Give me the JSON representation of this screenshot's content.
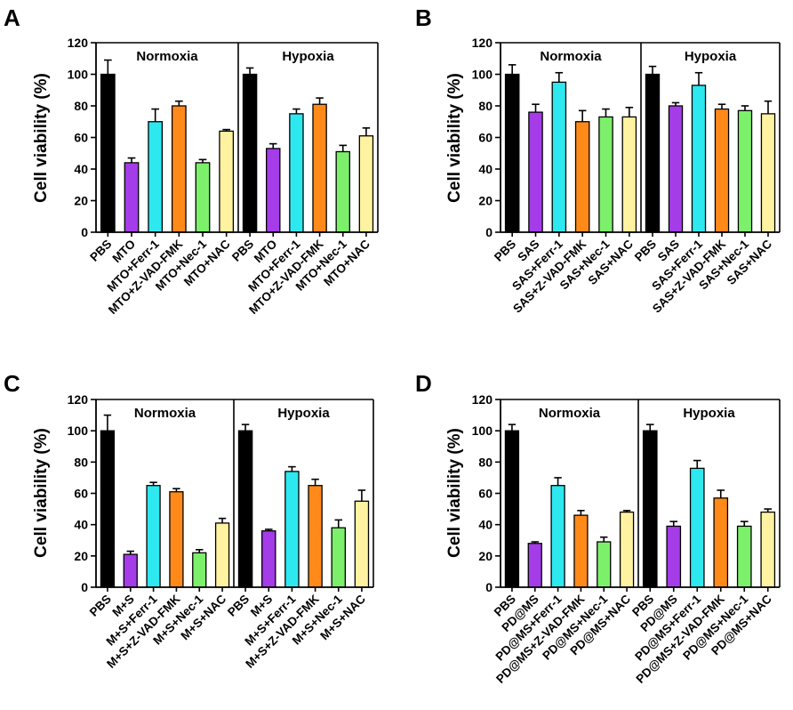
{
  "colors": [
    "#000000",
    "#a43ce8",
    "#2ee8f0",
    "#ff8a1a",
    "#7cf06a",
    "#fff2a0"
  ],
  "chart_data": [
    {
      "panel": "A",
      "type": "bar",
      "ylabel": "Cell viability (%)",
      "ylim": [
        0,
        120
      ],
      "yticks": [
        "0",
        "20",
        "40",
        "60",
        "80",
        "100",
        "120"
      ],
      "groups": [
        {
          "label": "Normoxia",
          "categories": [
            "PBS",
            "MTO",
            "MTO+Ferr-1",
            "MTO+Z-VAD-FMK",
            "MTO+Nec-1",
            "MTO+NAC"
          ],
          "values": [
            100,
            44,
            70,
            80,
            44,
            64
          ],
          "errors": [
            9,
            3,
            8,
            3,
            2,
            1
          ]
        },
        {
          "label": "Hypoxia",
          "categories": [
            "PBS",
            "MTO",
            "MTO+Ferr-1",
            "MTO+Z-VAD-FMK",
            "MTO+Nec-1",
            "MTO+NAC"
          ],
          "values": [
            100,
            53,
            75,
            81,
            51,
            61
          ],
          "errors": [
            4,
            3,
            3,
            4,
            4,
            5
          ]
        }
      ]
    },
    {
      "panel": "B",
      "type": "bar",
      "ylabel": "Cell viability (%)",
      "ylim": [
        0,
        120
      ],
      "yticks": [
        "0",
        "20",
        "40",
        "60",
        "80",
        "100",
        "120"
      ],
      "groups": [
        {
          "label": "Normoxia",
          "categories": [
            "PBS",
            "SAS",
            "SAS+Ferr-1",
            "SAS+Z-VAD-FMK",
            "SAS+Nec-1",
            "SAS+NAC"
          ],
          "values": [
            100,
            76,
            95,
            70,
            73,
            73
          ],
          "errors": [
            6,
            5,
            6,
            7,
            5,
            6
          ]
        },
        {
          "label": "Hypoxia",
          "categories": [
            "PBS",
            "SAS",
            "SAS+Ferr-1",
            "SAS+Z-VAD-FMK",
            "SAS+Nec-1",
            "SAS+NAC"
          ],
          "values": [
            100,
            80,
            93,
            78,
            77,
            75
          ],
          "errors": [
            5,
            2,
            8,
            3,
            3,
            8
          ]
        }
      ]
    },
    {
      "panel": "C",
      "type": "bar",
      "ylabel": "Cell viability (%)",
      "ylim": [
        0,
        120
      ],
      "yticks": [
        "0",
        "20",
        "40",
        "60",
        "80",
        "100",
        "120"
      ],
      "groups": [
        {
          "label": "Normoxia",
          "categories": [
            "PBS",
            "M+S",
            "M+S+Ferr-1",
            "M+S+Z-VAD-FMK",
            "M+S+Nec-1",
            "M+S+NAC"
          ],
          "values": [
            100,
            21,
            65,
            61,
            22,
            41
          ],
          "errors": [
            10,
            2,
            2,
            2,
            2,
            3
          ]
        },
        {
          "label": "Hypoxia",
          "categories": [
            "PBS",
            "M+S",
            "M+S+Ferr-1",
            "M+S+Z-VAD-FMK",
            "M+S+Nec-1",
            "M+S+NAC"
          ],
          "values": [
            100,
            36,
            74,
            65,
            38,
            55
          ],
          "errors": [
            4,
            1,
            3,
            4,
            5,
            7
          ]
        }
      ]
    },
    {
      "panel": "D",
      "type": "bar",
      "ylabel": "Cell viability (%)",
      "ylim": [
        0,
        120
      ],
      "yticks": [
        "0",
        "20",
        "40",
        "60",
        "80",
        "100",
        "120"
      ],
      "groups": [
        {
          "label": "Normoxia",
          "categories": [
            "PBS",
            "PD@MS",
            "PD@MS+Ferr-1",
            "PD@MS+Z-VAD-FMK",
            "PD@MS+Nec-1",
            "PD@MS+NAC"
          ],
          "values": [
            100,
            28,
            65,
            46,
            29,
            48
          ],
          "errors": [
            4,
            1,
            5,
            3,
            3,
            1
          ]
        },
        {
          "label": "Hypoxia",
          "categories": [
            "PBS",
            "PD@MS",
            "PD@MS+Ferr-1",
            "PD@MS+Z-VAD-FMK",
            "PD@MS+Nec-1",
            "PD@MS+NAC"
          ],
          "values": [
            100,
            39,
            76,
            57,
            39,
            48
          ],
          "errors": [
            4,
            3,
            5,
            5,
            3,
            2
          ]
        }
      ]
    }
  ]
}
